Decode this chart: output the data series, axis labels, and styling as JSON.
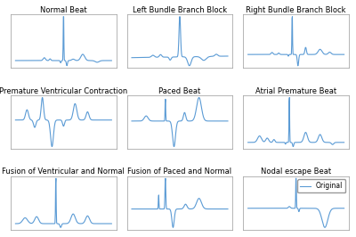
{
  "titles": [
    "Normal Beat",
    "Left Bundle Branch Block",
    "Right Bundle Branch Block",
    "Premature Ventricular Contraction",
    "Paced Beat",
    "Atrial Premature Beat",
    "Fusion of Ventricular and Normal",
    "Fusion of Paced and Normal",
    "Nodal escape Beat"
  ],
  "line_color": "#5b9bd5",
  "line_width": 0.8,
  "background_color": "#ffffff",
  "legend_label": "Original",
  "title_fontsize": 6.0,
  "legend_fontsize": 5.5
}
